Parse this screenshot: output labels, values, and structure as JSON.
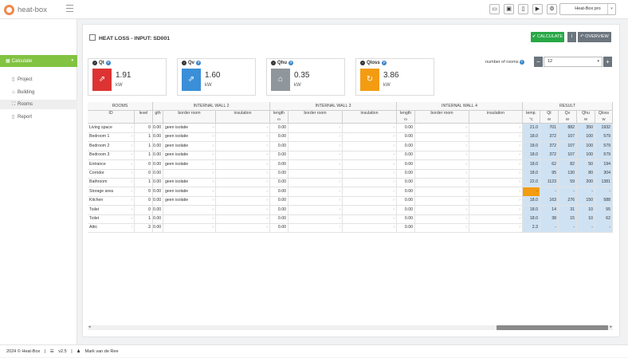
{
  "app": {
    "name": "heat-box"
  },
  "toolbar": {
    "project": "Heat-Box pro",
    "icons": [
      "folder-open-icon",
      "save-icon",
      "new-document-icon",
      "youtube-icon",
      "gear-icon"
    ]
  },
  "sidebar": {
    "calculate": "Calculate",
    "items": [
      {
        "label": "Project",
        "icon": "document-icon"
      },
      {
        "label": "Building",
        "icon": "home-icon"
      },
      {
        "label": "Rooms",
        "icon": "expand-icon"
      },
      {
        "label": "Report",
        "icon": "file-icon"
      }
    ]
  },
  "page": {
    "title": "HEAT LOSS - INPUT: SD001"
  },
  "buttons": {
    "calculate": "✔ CALCULATE",
    "info": "i",
    "overview": "↶ OVERVIEW"
  },
  "stats": [
    {
      "label": "Qt",
      "value": "1.91",
      "unit": "kW",
      "color": "#dd3333",
      "icon": "export-icon"
    },
    {
      "label": "Qv",
      "value": "1.60",
      "unit": "kW",
      "color": "#3a8fd8",
      "icon": "export-icon"
    },
    {
      "label": "Qhu",
      "value": "0.35",
      "unit": "kW",
      "color": "#8f969c",
      "icon": "home-icon"
    },
    {
      "label": "Qloss",
      "value": "3.86",
      "unit": "kW",
      "color": "#f39c12",
      "icon": "refresh-icon"
    }
  ],
  "rooms": {
    "label": "number of rooms",
    "value": "12",
    "minus": "−",
    "plus": "+"
  },
  "table": {
    "group_headers": {
      "rooms": "ROOMS",
      "wall2": "INTERNAL WALL 2",
      "wall3": "INTERNAL WALL 3",
      "wall4": "INTERNAL WALL 4",
      "result": "RESULT"
    },
    "sub_headers": {
      "id": "ID",
      "level": "level",
      "lth": "gth",
      "border": "border room",
      "ins": "insulation",
      "length": "length",
      "temp": "temp.",
      "qt": "Qt",
      "qv": "Qv",
      "qhu": "Qhu",
      "qloss": "Qloss"
    },
    "units": {
      "lth": " ",
      "length": "m",
      "temp": "°C",
      "w": "W"
    },
    "rows": [
      {
        "id": "Living space",
        "level": "0",
        "l2": "0.00",
        "b2": "geen isolatie",
        "l3": "0.00",
        "l4": "0.00",
        "temp": "21.0",
        "qt": "701",
        "qv": "882",
        "qhu": "350",
        "qloss": "1932"
      },
      {
        "id": "Bedroom 1",
        "level": "1",
        "l2": "0.00",
        "b2": "geen isolatie",
        "l3": "0.00",
        "l4": "0.00",
        "temp": "18.0",
        "qt": "372",
        "qv": "107",
        "qhu": "100",
        "qloss": "579"
      },
      {
        "id": "Bedroom 2",
        "level": "1",
        "l2": "0.00",
        "b2": "geen isolatie",
        "l3": "0.00",
        "l4": "0.00",
        "temp": "18.0",
        "qt": "372",
        "qv": "107",
        "qhu": "100",
        "qloss": "579"
      },
      {
        "id": "Bedroom 3",
        "level": "1",
        "l2": "0.00",
        "b2": "geen isolatie",
        "l3": "0.00",
        "l4": "0.00",
        "temp": "18.0",
        "qt": "372",
        "qv": "107",
        "qhu": "100",
        "qloss": "579"
      },
      {
        "id": "Entrance",
        "level": "0",
        "l2": "0.00",
        "b2": "geen isolatie",
        "l3": "0.00",
        "l4": "0.00",
        "temp": "18.0",
        "qt": "62",
        "qv": "82",
        "qhu": "50",
        "qloss": "194"
      },
      {
        "id": "Corridor",
        "level": "0",
        "l2": "0.00",
        "b2": "",
        "l3": "0.00",
        "l4": "0.00",
        "temp": "18.0",
        "qt": "95",
        "qv": "130",
        "qhu": "80",
        "qloss": "304"
      },
      {
        "id": "Bathroom",
        "level": "1",
        "l2": "0.00",
        "b2": "geen isolatie",
        "l3": "0.00",
        "l4": "0.00",
        "temp": "22.0",
        "qt": "1123",
        "qv": "59",
        "qhu": "200",
        "qloss": "1381"
      },
      {
        "id": "Storage area",
        "level": "0",
        "l2": "0.00",
        "b2": "geen isolatie",
        "l3": "0.00",
        "l4": "0.00",
        "temp": "-",
        "qt": "-",
        "qv": "-",
        "qhu": "-",
        "qloss": "-"
      },
      {
        "id": "Kitchen",
        "level": "0",
        "l2": "0.00",
        "b2": "geen isolatie",
        "l3": "0.00",
        "l4": "0.00",
        "temp": "18.0",
        "qt": "163",
        "qv": "276",
        "qhu": "150",
        "qloss": "588"
      },
      {
        "id": "Toilet",
        "level": "0",
        "l2": "0.00",
        "b2": "",
        "l3": "0.00",
        "l4": "0.00",
        "temp": "18.0",
        "qt": "14",
        "qv": "31",
        "qhu": "10",
        "qloss": "55"
      },
      {
        "id": "Toilet",
        "level": "1",
        "l2": "0.00",
        "b2": "",
        "l3": "0.00",
        "l4": "0.00",
        "temp": "18.0",
        "qt": "38",
        "qv": "15",
        "qhu": "10",
        "qloss": "62"
      },
      {
        "id": "Attic",
        "level": "2",
        "l2": "0.00",
        "b2": "",
        "l3": "0.00",
        "l4": "0.00",
        "temp": "2.3",
        "qt": "-",
        "qv": "-",
        "qhu": "-",
        "qloss": "-"
      }
    ],
    "highlight_color": "#f39c12"
  },
  "footer": {
    "copyright": "2024 © Heat-Box",
    "version": "v2.5",
    "author": "Mark van de Ree"
  }
}
